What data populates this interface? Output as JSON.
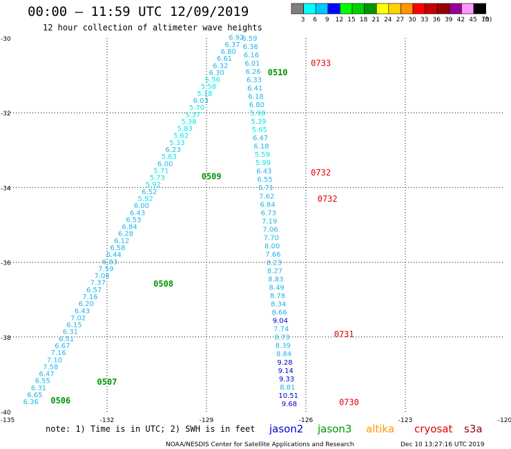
{
  "header": {
    "title": "00:00 – 11:59 UTC 12/09/2019",
    "subtitle": "12 hour collection of altimeter wave heights"
  },
  "legend": {
    "unit": "(ft)",
    "bins": [
      {
        "label": "3",
        "color": "#7f7f7f"
      },
      {
        "label": "6",
        "color": "#00ffff"
      },
      {
        "label": "9",
        "color": "#00c8ff"
      },
      {
        "label": "12",
        "color": "#0000ff"
      },
      {
        "label": "15",
        "color": "#00ff00"
      },
      {
        "label": "18",
        "color": "#00d200"
      },
      {
        "label": "21",
        "color": "#009600"
      },
      {
        "label": "24",
        "color": "#ffff00"
      },
      {
        "label": "27",
        "color": "#ffd200"
      },
      {
        "label": "30",
        "color": "#ff9600"
      },
      {
        "label": "33",
        "color": "#ff0000"
      },
      {
        "label": "36",
        "color": "#c80000"
      },
      {
        "label": "39",
        "color": "#960000"
      },
      {
        "label": "42",
        "color": "#960096"
      },
      {
        "label": "45",
        "color": "#ff96ff"
      },
      {
        "label": "70",
        "color": "#000000"
      }
    ]
  },
  "map": {
    "lon_min": -135,
    "lon_max": -120,
    "lat_min": -40,
    "lat_max": -30,
    "lon_ticks": [
      "-135",
      "-132",
      "-129",
      "-126",
      "-123",
      "-120"
    ],
    "lat_ticks": [
      "-30",
      "-32",
      "-34",
      "-36",
      "-38",
      "-40"
    ],
    "grid": "dotted"
  },
  "track1": {
    "color_light": "#00e6e6",
    "color_mid": "#1eb4e6",
    "values": [
      "6.36",
      "6.65",
      "6.31",
      "6.55",
      "6.47",
      "7.58",
      "7.10",
      "7.16",
      "6.67",
      "6.51",
      "6.31",
      "6.15",
      "7.02",
      "6.43",
      "6.20",
      "7.16",
      "6.57",
      "7.37",
      "7.08",
      "7.59",
      "6.83",
      "6.44",
      "6.58",
      "6.12",
      "6.28",
      "6.84",
      "6.53",
      "6.43",
      "6.00",
      "5.92",
      "6.52",
      "5.92",
      "5.73",
      "5.71",
      "6.00",
      "5.63",
      "6.23",
      "5.33",
      "5.62",
      "5.83",
      "5.38",
      "5.37",
      "5.70",
      "6.03",
      "5.18",
      "5.58",
      "5.56",
      "6.30",
      "6.32",
      "6.61",
      "6.80",
      "6.37",
      "6.92"
    ],
    "start": {
      "lon": -134.3,
      "lat": -39.8
    },
    "end": {
      "lon": -128.1,
      "lat": -30.05
    },
    "time_labels": [
      {
        "text": "0506",
        "lon": -133.4,
        "lat": -39.78
      },
      {
        "text": "0507",
        "lon": -132.0,
        "lat": -39.28
      },
      {
        "text": "0508",
        "lon": -130.3,
        "lat": -36.65
      },
      {
        "text": "0509",
        "lon": -128.85,
        "lat": -33.78
      },
      {
        "text": "0510",
        "lon": -126.85,
        "lat": -31.0
      }
    ]
  },
  "track2": {
    "color_light": "#00e6e6",
    "color_mid": "#1eb4e6",
    "color_dark": "#0000cd",
    "values": [
      "6.59",
      "6.36",
      "6.16",
      "6.01",
      "6.26",
      "6.33",
      "6.41",
      "6.18",
      "6.80",
      "5.98",
      "5.39",
      "5.65",
      "6.47",
      "6.18",
      "5.59",
      "5.99",
      "6.43",
      "6.55",
      "6.71",
      "7.62",
      "6.84",
      "6.73",
      "7.19",
      "7.06",
      "7.70",
      "8.00",
      "7.66",
      "8.23",
      "8.27",
      "8.83",
      "8.49",
      "8.78",
      "8.34",
      "8.66",
      "9.04",
      "7.74",
      "8.73",
      "8.39",
      "8.84",
      "9.28",
      "9.14",
      "9.33",
      "8.81",
      "10.51",
      "9.68"
    ],
    "start": {
      "lon": -127.7,
      "lat": -30.07
    },
    "end": {
      "lon": -126.5,
      "lat": -39.85
    },
    "time_labels": [
      {
        "text": "0733",
        "lon": -125.55,
        "lat": -30.75
      },
      {
        "text": "0732",
        "lon": -125.55,
        "lat": -33.68
      },
      {
        "text": "0732",
        "lon": -125.35,
        "lat": -34.38
      },
      {
        "text": "0731",
        "lon": -124.85,
        "lat": -38.0
      },
      {
        "text": "0730",
        "lon": -124.7,
        "lat": -39.82
      }
    ]
  },
  "footer": {
    "note": "note: 1) Time is in UTC; 2) SWH is in feet",
    "credit": "NOAA/NESDIS Center for Satellite Applications and Research",
    "timestamp": "Dec 10 13:27:16 UTC 2019",
    "satellites": [
      {
        "name": "jason2",
        "color": "#0000cd"
      },
      {
        "name": "jason3",
        "color": "#009600"
      },
      {
        "name": "altika",
        "color": "#ff9600"
      },
      {
        "name": "cryosat",
        "color": "#e00000"
      },
      {
        "name": "s3a",
        "color": "#960000"
      }
    ]
  }
}
